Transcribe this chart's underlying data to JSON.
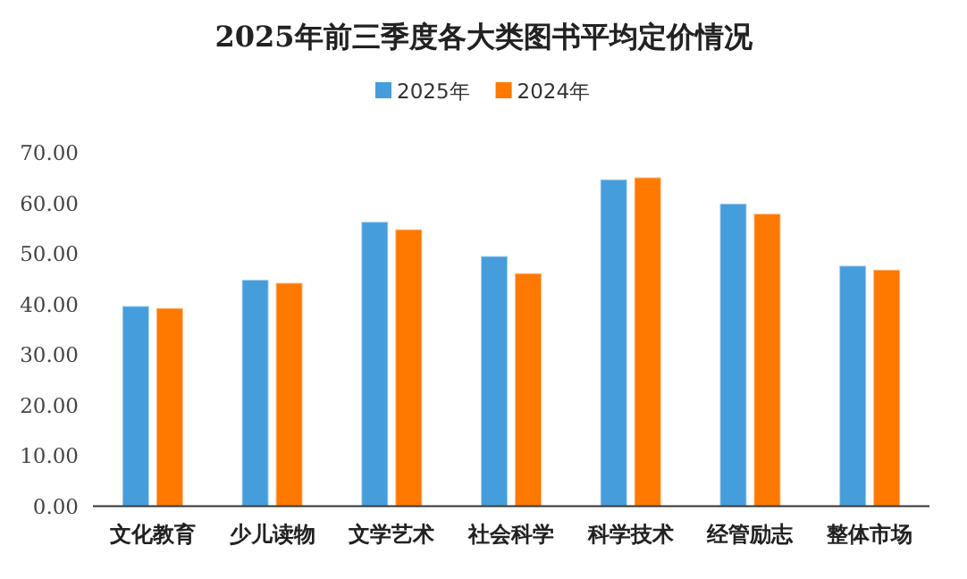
{
  "chart_data": {
    "type": "bar",
    "title": "2025年前三季度各大类图书平均定价情况",
    "categories": [
      "文化教育",
      "少儿读物",
      "文学艺术",
      "社会科学",
      "科学技术",
      "经管励志",
      "整体市场"
    ],
    "series": [
      {
        "name": "2025年",
        "color": "#459ddb",
        "values": [
          39.7,
          44.9,
          56.4,
          49.6,
          64.8,
          60.0,
          47.7
        ]
      },
      {
        "name": "2024年",
        "color": "#ff7800",
        "values": [
          39.3,
          44.3,
          54.9,
          46.2,
          65.2,
          58.0,
          46.9
        ]
      }
    ],
    "ylim": [
      0,
      70
    ],
    "yticks": [
      {
        "value": 0,
        "label": "0.00"
      },
      {
        "value": 10,
        "label": "10.00"
      },
      {
        "value": 20,
        "label": "20.00"
      },
      {
        "value": 30,
        "label": "30.00"
      },
      {
        "value": 40,
        "label": "40.00"
      },
      {
        "value": 50,
        "label": "50.00"
      },
      {
        "value": 60,
        "label": "60.00"
      },
      {
        "value": 70,
        "label": "70.00"
      }
    ],
    "grid": false,
    "legend": "top"
  }
}
